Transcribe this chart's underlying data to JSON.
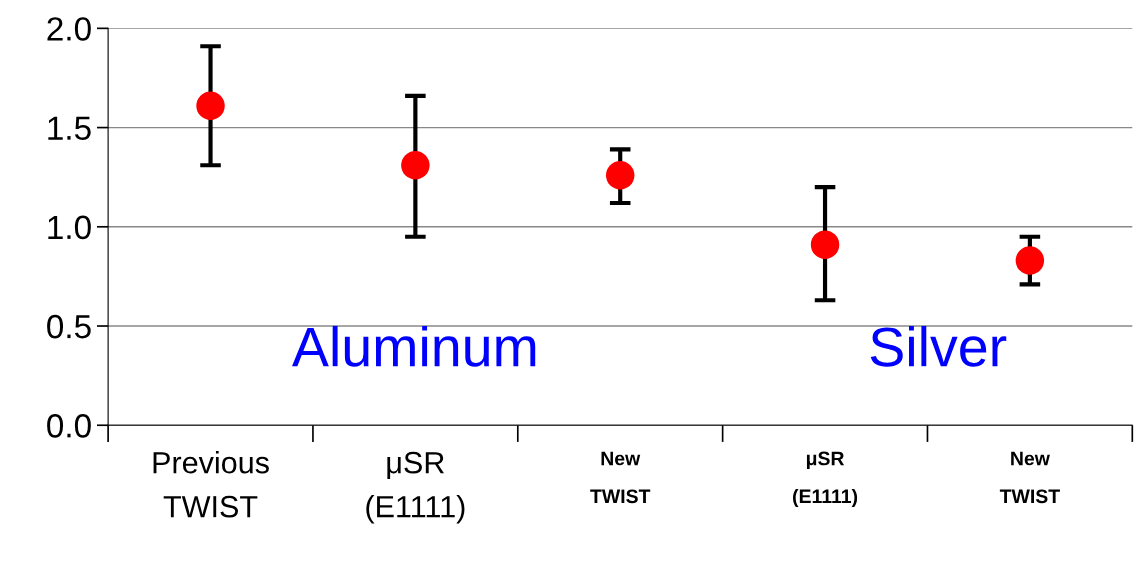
{
  "chart_data": {
    "type": "scatter",
    "categories": [
      "Previous\nTWIST",
      "μSR\n(E1111)",
      "New\nTWIST",
      "μSR\n(E1111)",
      "New\nTWIST"
    ],
    "values": [
      1.61,
      1.31,
      1.26,
      0.91,
      0.83
    ],
    "errors": [
      [
        1.31,
        1.91
      ],
      [
        0.95,
        1.66
      ],
      [
        1.12,
        1.39
      ],
      [
        0.63,
        1.2
      ],
      [
        0.71,
        0.95
      ]
    ],
    "color": "#ff0000",
    "marker": "circle",
    "ylim": [
      0,
      2
    ],
    "yticks": [
      {
        "value": 0,
        "label": "0.0"
      },
      {
        "value": 0.5,
        "label": "0.5"
      },
      {
        "value": 1,
        "label": "1.0"
      },
      {
        "value": 1.5,
        "label": "1.5"
      },
      {
        "value": 2,
        "label": "2.0"
      }
    ],
    "grid": "y",
    "annotations": [
      "Aluminum",
      "Silver"
    ]
  }
}
